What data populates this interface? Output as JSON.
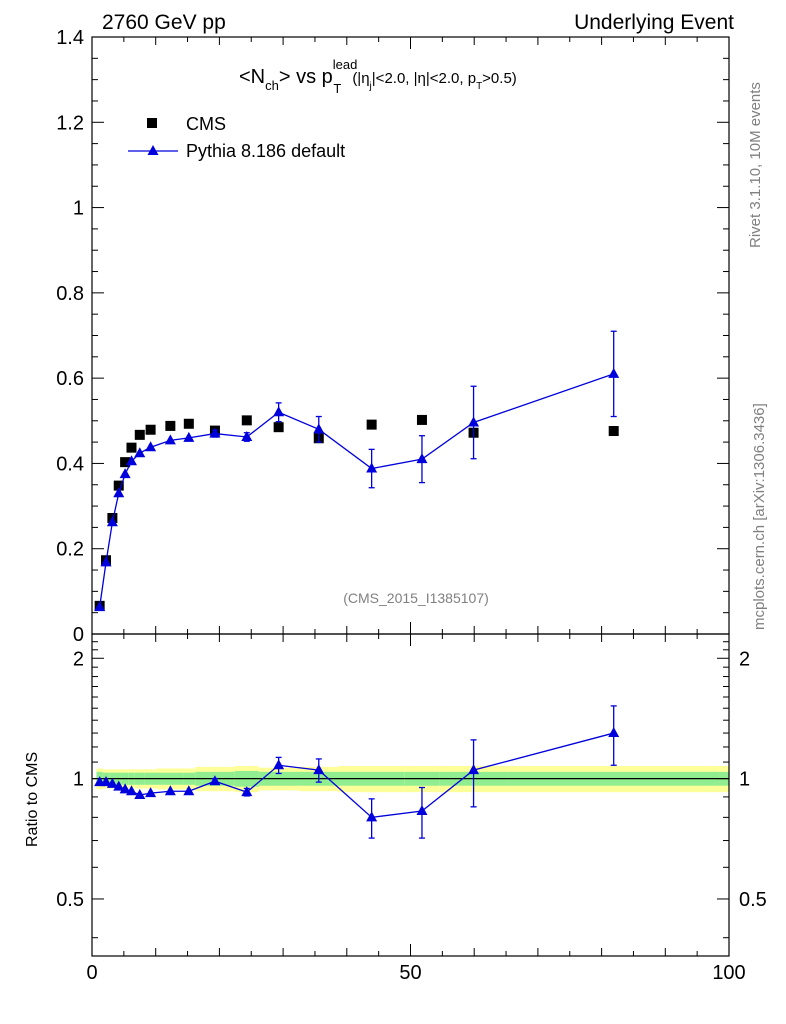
{
  "header": {
    "left": "2760 GeV pp",
    "right": "Underlying Event"
  },
  "side_labels": {
    "rivet": "Rivet 3.1.10,  10M events",
    "mcplots": "mcplots.cern.ch [arXiv:1306.3436]"
  },
  "analysis_id": "(CMS_2015_I1385107)",
  "title": {
    "n": "<N",
    "ch": "ch",
    "vs": "> vs p",
    "lead": "lead",
    "T": "T",
    "cuts": "(|η",
    "j": "j",
    "cuts2": "|<2.0, |η|<2.0, p",
    "T2": "T",
    "cuts3": ">0.5)"
  },
  "legend": {
    "cms": "CMS",
    "pythia": "Pythia 8.186 default"
  },
  "colors": {
    "mc": "#0000dd",
    "data": "#000000",
    "band_inner": "#90ee90",
    "band_outer": "#ffff99",
    "grey_text": "#808080"
  },
  "chart_data": [
    {
      "type": "scatter",
      "panel": "main",
      "xlim": [
        0,
        100
      ],
      "ylim": [
        0,
        1.4
      ],
      "yticks": [
        "0",
        "0.2",
        "0.4",
        "0.6",
        "0.8",
        "1",
        "1.2",
        "1.4"
      ],
      "ytick_values": [
        0,
        0.2,
        0.4,
        0.6,
        0.8,
        1,
        1.2,
        1.4
      ],
      "series": [
        {
          "name": "CMS",
          "style": "square-markers",
          "x": [
            1.2,
            2.2,
            3.2,
            4.2,
            5.2,
            6.2,
            7.5,
            9.2,
            12.3,
            15.2,
            19.3,
            24.3,
            29.3,
            35.6,
            43.9,
            51.8,
            59.9,
            81.9
          ],
          "y": [
            0.066,
            0.173,
            0.272,
            0.348,
            0.403,
            0.437,
            0.467,
            0.479,
            0.488,
            0.493,
            0.477,
            0.501,
            0.485,
            0.459,
            0.491,
            0.502,
            0.472,
            0.476
          ]
        },
        {
          "name": "Pythia 8.186 default",
          "style": "line-triangles",
          "x": [
            1.2,
            2.2,
            3.2,
            4.2,
            5.2,
            6.2,
            7.5,
            9.2,
            12.3,
            15.2,
            19.3,
            24.3,
            29.3,
            35.6,
            43.9,
            51.8,
            59.9,
            81.9
          ],
          "y": [
            0.063,
            0.168,
            0.262,
            0.33,
            0.375,
            0.405,
            0.424,
            0.438,
            0.454,
            0.46,
            0.47,
            0.462,
            0.52,
            0.48,
            0.388,
            0.41,
            0.496,
            0.61
          ],
          "yerr": [
            0,
            0,
            0,
            0,
            0,
            0,
            0,
            0,
            0,
            0,
            0.008,
            0.01,
            0.022,
            0.03,
            0.045,
            0.055,
            0.085,
            0.1
          ]
        }
      ]
    },
    {
      "type": "scatter",
      "panel": "ratio",
      "xlabel": "",
      "ylabel": "Ratio to CMS",
      "xlim": [
        0,
        100
      ],
      "ylim": [
        0.36,
        2.3
      ],
      "yscale": "log",
      "yticks": [
        "0.5",
        "1",
        "2"
      ],
      "ytick_values": [
        0.5,
        1,
        2
      ],
      "xticks": [
        "0",
        "50",
        "100"
      ],
      "xtick_values": [
        0,
        50,
        100
      ],
      "band_edges": [
        0.7,
        1.7,
        2.7,
        3.7,
        4.7,
        5.7,
        6.7,
        8.3,
        10.2,
        14.3,
        16.2,
        22.4,
        26.2,
        32.5,
        38.7,
        49.1,
        54.5,
        65.3,
        98.5,
        100
      ],
      "band_inner_half": [
        0.04,
        0.035,
        0.035,
        0.035,
        0.035,
        0.035,
        0.035,
        0.035,
        0.035,
        0.035,
        0.04,
        0.045,
        0.04,
        0.04,
        0.04,
        0.04,
        0.04,
        0.04,
        0.04
      ],
      "band_outer_half": [
        0.06,
        0.055,
        0.055,
        0.055,
        0.055,
        0.055,
        0.055,
        0.055,
        0.06,
        0.06,
        0.07,
        0.075,
        0.065,
        0.07,
        0.075,
        0.075,
        0.075,
        0.075,
        0.075
      ],
      "series": [
        {
          "name": "Pythia 8.186 default / CMS",
          "style": "line-triangles",
          "x": [
            1.2,
            2.2,
            3.2,
            4.2,
            5.2,
            6.2,
            7.5,
            9.2,
            12.3,
            15.2,
            19.3,
            24.3,
            29.3,
            35.6,
            43.9,
            51.8,
            59.9,
            81.9
          ],
          "y": [
            0.98,
            0.98,
            0.97,
            0.955,
            0.94,
            0.93,
            0.91,
            0.92,
            0.93,
            0.93,
            0.985,
            0.925,
            1.08,
            1.05,
            0.8,
            0.83,
            1.05,
            1.3
          ],
          "yerr": [
            0,
            0,
            0,
            0,
            0,
            0,
            0,
            0,
            0,
            0,
            0.015,
            0.02,
            0.05,
            0.07,
            0.09,
            0.12,
            0.2,
            0.22
          ]
        }
      ]
    }
  ]
}
